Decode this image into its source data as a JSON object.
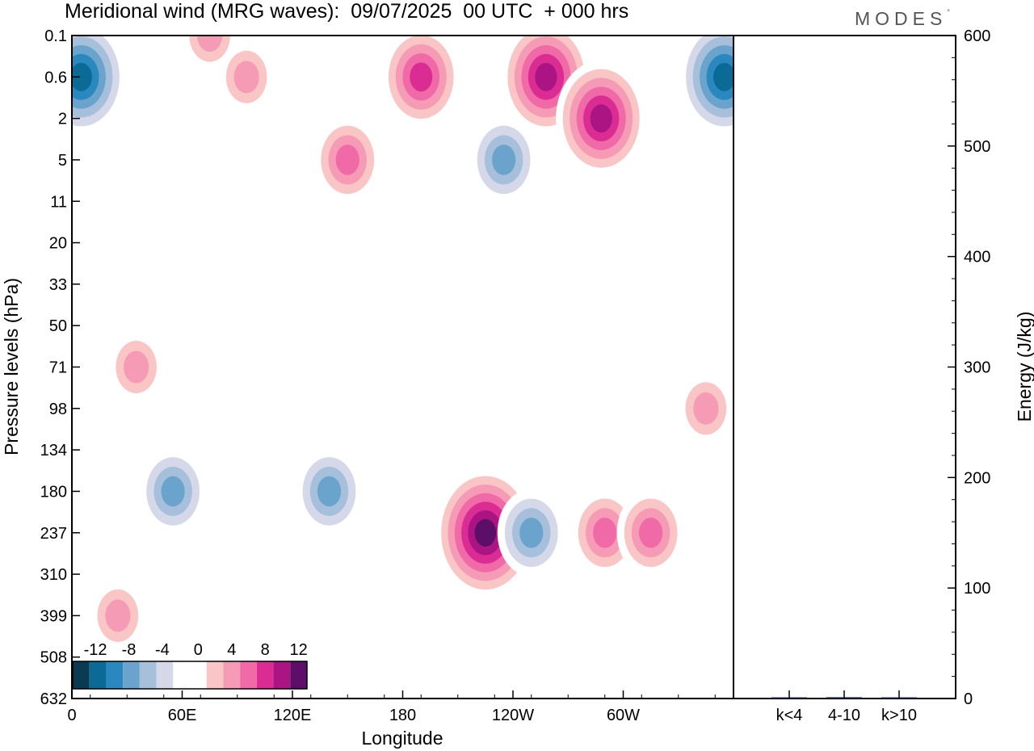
{
  "header": {
    "title": "Meridional wind (MRG waves):  09/07/2025  00 UTC  + 000 hrs",
    "logo_text": "MODES",
    "logo_mark": "°"
  },
  "chart_data": [
    {
      "type": "heatmap",
      "title": "Meridional wind (MRG waves):  09/07/2025  00 UTC  + 000 hrs",
      "xlabel": "Longitude",
      "ylabel": "Pressure levels (hPa)",
      "x_ticks": [
        "0",
        "60E",
        "120E",
        "180",
        "120W",
        "60W"
      ],
      "x_range": [
        0,
        360
      ],
      "y_ticks": [
        "0.1",
        "0.6",
        "2",
        "5",
        "11",
        "20",
        "33",
        "50",
        "71",
        "98",
        "134",
        "180",
        "237",
        "310",
        "399",
        "508",
        "632"
      ],
      "y_order": "top-to-bottom",
      "grid": false,
      "colorbar": {
        "placement": "bottom-left",
        "labels": [
          "-12",
          "-8",
          "-4",
          "0",
          "4",
          "8",
          "12"
        ],
        "colors": [
          "#0b3b52",
          "#0c6a96",
          "#2a88bf",
          "#6aa3cb",
          "#a6bfdb",
          "#d4d8e9",
          "#ffffff",
          "#ffffff",
          "#f9c5c5",
          "#f69bb5",
          "#ef6aa6",
          "#db2c93",
          "#ab1583",
          "#5b0f69"
        ]
      },
      "features": [
        {
          "lon": 5,
          "p": "0.6",
          "value": -12
        },
        {
          "lon": 355,
          "p": "0.6",
          "value": -12
        },
        {
          "lon": 75,
          "p": "0.1",
          "value": 6
        },
        {
          "lon": 95,
          "p": "0.6",
          "value": 6
        },
        {
          "lon": 150,
          "p": "5",
          "value": 8
        },
        {
          "lon": 190,
          "p": "0.6",
          "value": 10
        },
        {
          "lon": 258,
          "p": "0.6",
          "value": 12
        },
        {
          "lon": 288,
          "p": "2",
          "value": 12
        },
        {
          "lon": 235,
          "p": "5",
          "value": -8
        },
        {
          "lon": 55,
          "p": "180",
          "value": -8
        },
        {
          "lon": 140,
          "p": "180",
          "value": -8
        },
        {
          "lon": 225,
          "p": "237",
          "value": 14
        },
        {
          "lon": 250,
          "p": "237",
          "value": -8
        },
        {
          "lon": 290,
          "p": "237",
          "value": 8
        },
        {
          "lon": 315,
          "p": "237",
          "value": 8
        },
        {
          "lon": 25,
          "p": "399",
          "value": 6
        },
        {
          "lon": 35,
          "p": "71",
          "value": 6
        },
        {
          "lon": 345,
          "p": "98",
          "value": 6
        }
      ]
    },
    {
      "type": "bar",
      "ylabel": "Energy (J/kg)",
      "categories": [
        "k<4",
        "4-10",
        "k>10"
      ],
      "values": [
        0.5,
        1.2,
        0.3
      ],
      "ylim": [
        0,
        600
      ],
      "y_ticks": [
        "0",
        "100",
        "200",
        "300",
        "400",
        "500",
        "600"
      ],
      "bar_color": "#1f2a5c"
    }
  ]
}
